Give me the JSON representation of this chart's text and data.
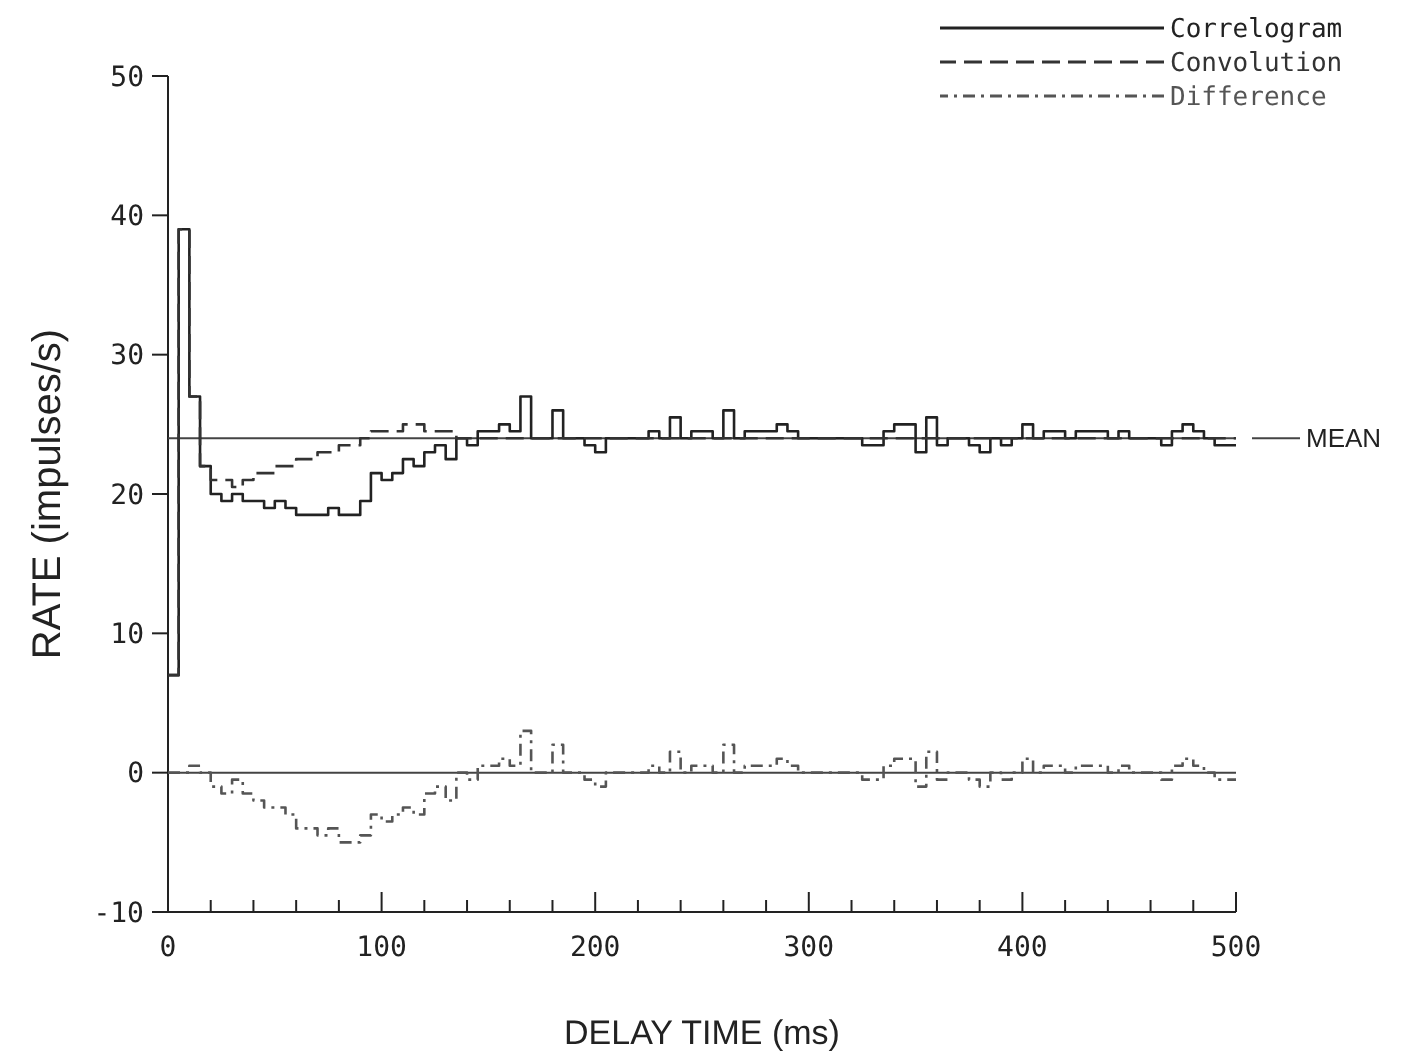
{
  "chart_data": {
    "type": "step",
    "xlabel": "DELAY TIME (ms)",
    "ylabel": "RATE (impulses/s)",
    "x": [
      0,
      5,
      10,
      15,
      20,
      25,
      30,
      35,
      40,
      45,
      50,
      55,
      60,
      65,
      70,
      75,
      80,
      85,
      90,
      95,
      100,
      105,
      110,
      115,
      120,
      125,
      130,
      135,
      140,
      145,
      150,
      155,
      160,
      165,
      170,
      175,
      180,
      185,
      190,
      195,
      200,
      205,
      210,
      215,
      220,
      225,
      230,
      235,
      240,
      245,
      250,
      255,
      260,
      265,
      270,
      275,
      280,
      285,
      290,
      295,
      300,
      305,
      310,
      315,
      320,
      325,
      330,
      335,
      340,
      345,
      350,
      355,
      360,
      365,
      370,
      375,
      380,
      385,
      390,
      395,
      400,
      405,
      410,
      415,
      420,
      425,
      430,
      435,
      440,
      445,
      450,
      455,
      460,
      465,
      470,
      475,
      480,
      485,
      490,
      495,
      500
    ],
    "series": [
      {
        "name": "Correlogram",
        "color": "#222222",
        "line_style": "solid",
        "values": [
          7,
          39,
          27,
          22,
          20,
          19.5,
          20,
          19.5,
          19.5,
          19,
          19.5,
          19,
          18.5,
          18.5,
          18.5,
          19,
          18.5,
          18.5,
          19.5,
          21.5,
          21,
          21.5,
          22.5,
          22,
          23,
          23.5,
          22.5,
          24,
          23.5,
          24.5,
          24.5,
          25,
          24.5,
          27,
          24,
          24,
          26,
          24,
          24,
          23.5,
          23,
          24,
          24,
          24,
          24,
          24.5,
          24,
          25.5,
          24,
          24.5,
          24.5,
          24,
          26,
          24,
          24.5,
          24.5,
          24.5,
          25,
          24.5,
          24,
          24,
          24,
          24,
          24,
          24,
          23.5,
          23.5,
          24.5,
          25,
          25,
          23,
          25.5,
          23.5,
          24,
          24,
          23.5,
          23,
          24,
          23.5,
          24,
          25,
          24,
          24.5,
          24.5,
          24,
          24.5,
          24.5,
          24.5,
          24,
          24.5,
          24,
          24,
          24,
          23.5,
          24.5,
          25,
          24.5,
          24,
          23.5,
          23.5,
          23.5
        ]
      },
      {
        "name": "Convolution",
        "color": "#333333",
        "line_style": "dashed",
        "values": [
          7,
          39,
          27,
          22,
          21,
          21,
          20.5,
          21,
          21.5,
          21.5,
          22,
          22,
          22.5,
          22.5,
          23,
          23,
          23.5,
          23.5,
          24,
          24.5,
          24.5,
          24.5,
          25,
          25,
          24.5,
          24.5,
          24.5,
          24,
          24,
          24,
          24,
          24,
          24,
          24,
          24,
          24,
          24,
          24,
          24,
          24,
          24,
          24,
          24,
          24,
          24,
          24,
          24,
          24,
          24,
          24,
          24,
          24,
          24,
          24,
          24,
          24,
          24,
          24,
          24,
          24,
          24,
          24,
          24,
          24,
          24,
          24,
          24,
          24,
          24,
          24,
          24,
          24,
          24,
          24,
          24,
          24,
          24,
          24,
          24,
          24,
          24,
          24,
          24,
          24,
          24,
          24,
          24,
          24,
          24,
          24,
          24,
          24,
          24,
          24,
          24,
          24,
          24,
          24,
          24,
          24,
          24
        ]
      },
      {
        "name": "Difference",
        "color": "#555555",
        "line_style": "dashdot",
        "values": [
          0,
          0,
          0.5,
          0,
          -1,
          -1.5,
          -0.5,
          -1.5,
          -2,
          -2.5,
          -2.5,
          -3,
          -4,
          -4,
          -4.5,
          -4,
          -5,
          -5,
          -4.5,
          -3,
          -3.5,
          -3,
          -2.5,
          -3,
          -1.5,
          -1,
          -2,
          0,
          -0.5,
          0.5,
          0.5,
          1,
          0.5,
          3,
          0,
          0,
          2,
          0,
          0,
          -0.5,
          -1,
          0,
          0,
          0,
          0,
          0.5,
          0,
          1.5,
          0,
          0.5,
          0.5,
          0,
          2,
          0,
          0.5,
          0.5,
          0.5,
          1,
          0.5,
          0,
          0,
          0,
          0,
          0,
          0,
          -0.5,
          -0.5,
          0.5,
          1,
          1,
          -1,
          1.5,
          -0.5,
          0,
          0,
          -0.5,
          -1,
          0,
          -0.5,
          0,
          1,
          0,
          0.5,
          0.5,
          0,
          0.5,
          0.5,
          0.5,
          0,
          0.5,
          0,
          0,
          0,
          -0.5,
          0.5,
          1,
          0.5,
          0,
          -0.5,
          -0.5,
          -0.5
        ]
      }
    ],
    "xlim": [
      0,
      500
    ],
    "xticks": [
      0,
      {
        "value": 20,
        "label": null
      },
      {
        "value": 40,
        "label": null
      },
      {
        "value": 60,
        "label": null
      },
      {
        "value": 80,
        "label": null
      },
      100,
      {
        "value": 120,
        "label": null
      },
      {
        "value": 140,
        "label": null
      },
      {
        "value": 160,
        "label": null
      },
      {
        "value": 180,
        "label": null
      },
      200,
      {
        "value": 220,
        "label": null
      },
      {
        "value": 240,
        "label": null
      },
      {
        "value": 260,
        "label": null
      },
      {
        "value": 280,
        "label": null
      },
      300,
      {
        "value": 320,
        "label": null
      },
      {
        "value": 340,
        "label": null
      },
      {
        "value": 360,
        "label": null
      },
      {
        "value": 380,
        "label": null
      },
      400,
      {
        "value": 420,
        "label": null
      },
      {
        "value": 440,
        "label": null
      },
      {
        "value": 460,
        "label": null
      },
      {
        "value": 480,
        "label": null
      },
      500
    ],
    "ylim": [
      -10,
      50
    ],
    "yticks": [
      -10,
      0,
      10,
      20,
      30,
      40,
      50
    ],
    "ref_lines": [
      {
        "axis": "y",
        "value": 0
      },
      {
        "axis": "y",
        "value": 24,
        "label": "MEAN"
      }
    ],
    "legend": "top right",
    "grid": false
  }
}
